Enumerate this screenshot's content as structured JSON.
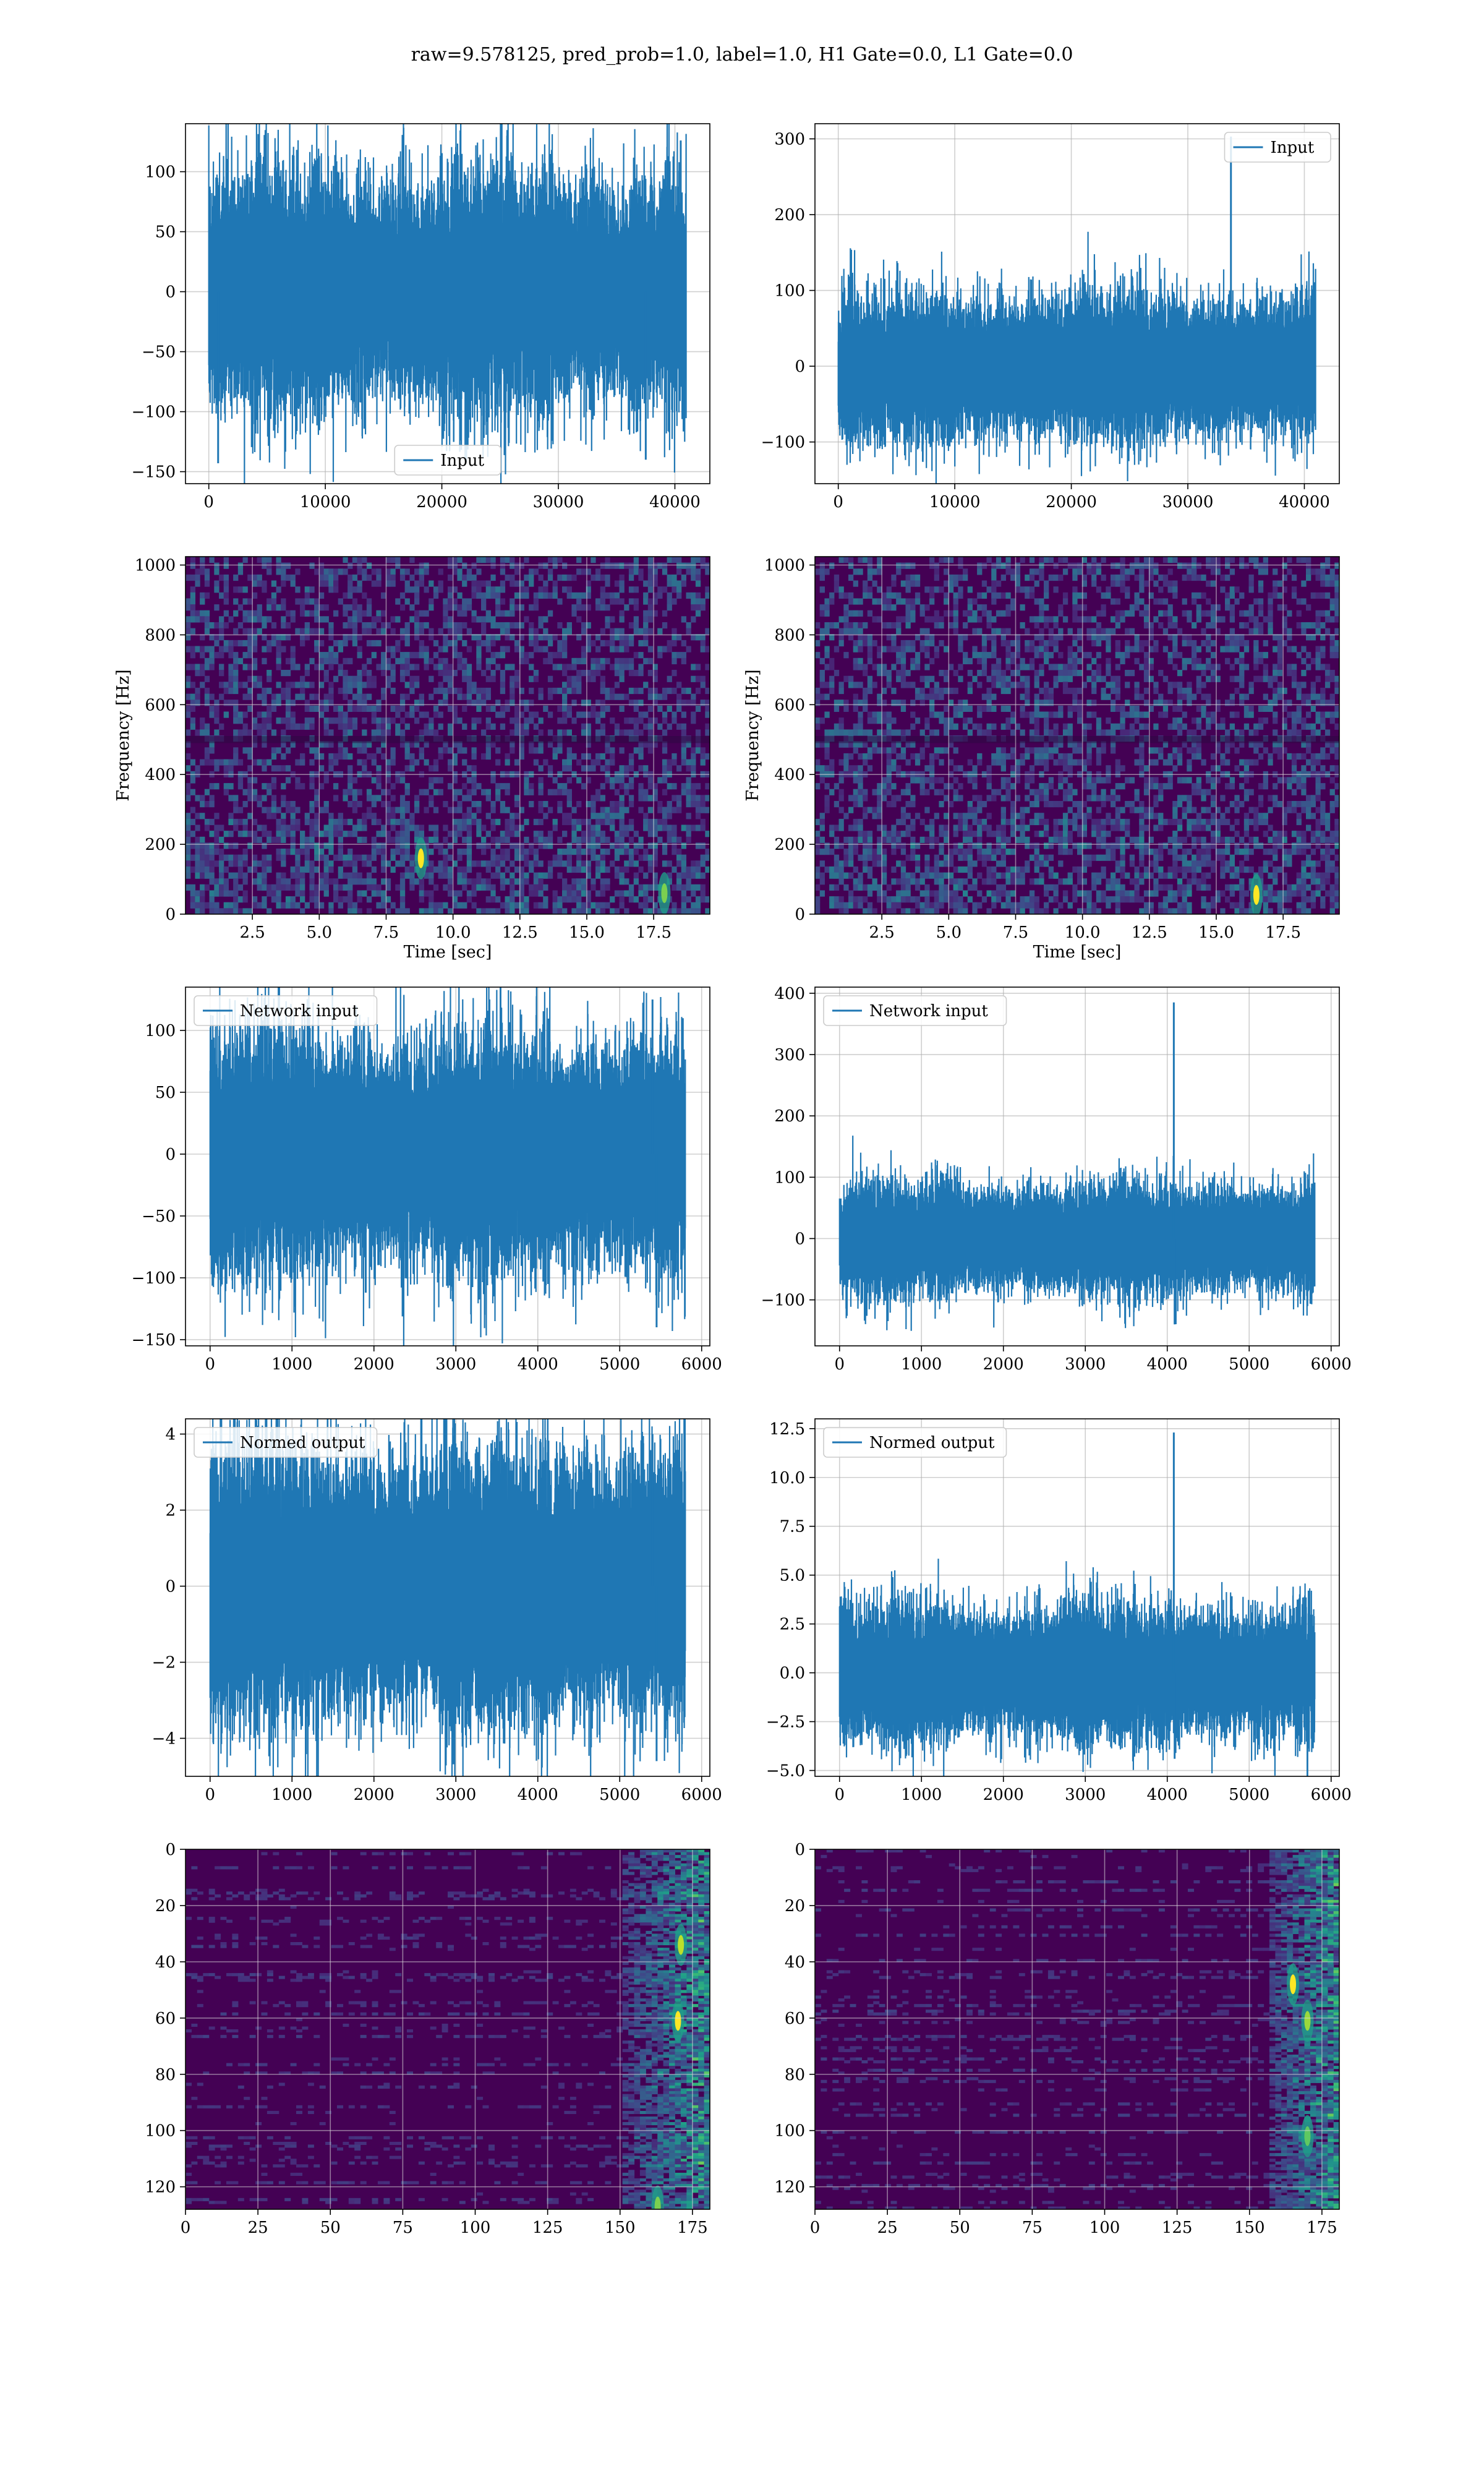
{
  "figure": {
    "title": "raw=9.578125, pred_prob=1.0, label=1.0, H1 Gate=0.0, L1 Gate=0.0"
  },
  "colors": {
    "line": "#1f77b4",
    "grid": "#b0b0b0",
    "spec_bg": "#440154",
    "spec_mid": "#3b528b",
    "spec_teal": "#21918c",
    "spec_green": "#5ec962",
    "spec_yellow": "#fde725"
  },
  "chart_data": [
    {
      "id": "h1-input",
      "type": "line",
      "column": 0,
      "row": 0,
      "series": [
        {
          "name": "Input",
          "n": 40960,
          "x_range": [
            0,
            40960
          ],
          "amplitude_std": 28,
          "spikes": [
            {
              "x": 800,
              "y": -143
            },
            {
              "x": 37500,
              "y": -140
            },
            {
              "x": 40500,
              "y": 126
            }
          ]
        }
      ],
      "legend": "lower center",
      "xlim": [
        -2000,
        43000
      ],
      "ylim": [
        -160,
        140
      ],
      "xticks": [
        0,
        10000,
        20000,
        30000,
        40000
      ],
      "yticks": [
        -150,
        -100,
        -50,
        0,
        50,
        100
      ],
      "xticklabels": [
        "0",
        "10000",
        "20000",
        "30000",
        "40000"
      ],
      "yticklabels": [
        "−150",
        "−100",
        "−50",
        "0",
        "50",
        "100"
      ],
      "grid": true
    },
    {
      "id": "l1-input",
      "type": "line",
      "column": 1,
      "row": 0,
      "series": [
        {
          "name": "Input",
          "n": 40960,
          "x_range": [
            0,
            40960
          ],
          "amplitude_std": 26,
          "spikes": [
            {
              "x": 33700,
              "y": 303
            }
          ]
        }
      ],
      "legend": "upper right",
      "xlim": [
        -2000,
        43000
      ],
      "ylim": [
        -155,
        320
      ],
      "xticks": [
        0,
        10000,
        20000,
        30000,
        40000
      ],
      "yticks": [
        -100,
        0,
        100,
        200,
        300
      ],
      "xticklabels": [
        "0",
        "10000",
        "20000",
        "30000",
        "40000"
      ],
      "yticklabels": [
        "−100",
        "0",
        "100",
        "200",
        "300"
      ],
      "grid": true
    },
    {
      "id": "h1-spectrogram",
      "type": "heatmap",
      "column": 0,
      "row": 1,
      "xlim": [
        0,
        19.6
      ],
      "ylim": [
        0,
        1024
      ],
      "xticks": [
        2.5,
        5.0,
        7.5,
        10.0,
        12.5,
        15.0,
        17.5
      ],
      "yticks": [
        0,
        200,
        400,
        600,
        800,
        1000
      ],
      "xticklabels": [
        "2.5",
        "5.0",
        "7.5",
        "10.0",
        "12.5",
        "15.0",
        "17.5"
      ],
      "yticklabels": [
        "0",
        "200",
        "400",
        "600",
        "800",
        "1000"
      ],
      "xlabel": "Time [sec]",
      "ylabel": "Frequency [Hz]",
      "hotspots": [
        {
          "x": 8.8,
          "y": 160,
          "level": 1.0
        },
        {
          "x": 17.9,
          "y": 60,
          "level": 0.8
        }
      ],
      "grid": true
    },
    {
      "id": "l1-spectrogram",
      "type": "heatmap",
      "column": 1,
      "row": 1,
      "xlim": [
        0,
        19.6
      ],
      "ylim": [
        0,
        1024
      ],
      "xticks": [
        2.5,
        5.0,
        7.5,
        10.0,
        12.5,
        15.0,
        17.5
      ],
      "yticks": [
        0,
        200,
        400,
        600,
        800,
        1000
      ],
      "xticklabels": [
        "2.5",
        "5.0",
        "7.5",
        "10.0",
        "12.5",
        "15.0",
        "17.5"
      ],
      "yticklabels": [
        "0",
        "200",
        "400",
        "600",
        "800",
        "1000"
      ],
      "xlabel": "Time [sec]",
      "ylabel": "Frequency [Hz]",
      "hotspots": [
        {
          "x": 16.5,
          "y": 55,
          "level": 1.0
        }
      ],
      "grid": true
    },
    {
      "id": "h1-network-input",
      "type": "line",
      "column": 0,
      "row": 2,
      "series": [
        {
          "name": "Network input",
          "n": 5800,
          "x_range": [
            0,
            5800
          ],
          "amplitude_std": 27,
          "spikes": [
            {
              "x": 5400,
              "y": 125
            },
            {
              "x": 5450,
              "y": -140
            },
            {
              "x": 1900,
              "y": -112
            }
          ]
        }
      ],
      "legend": "upper left",
      "xlim": [
        -300,
        6100
      ],
      "ylim": [
        -155,
        135
      ],
      "xticks": [
        0,
        1000,
        2000,
        3000,
        4000,
        5000,
        6000
      ],
      "yticks": [
        -150,
        -100,
        -50,
        0,
        50,
        100
      ],
      "xticklabels": [
        "0",
        "1000",
        "2000",
        "3000",
        "4000",
        "5000",
        "6000"
      ],
      "yticklabels": [
        "−150",
        "−100",
        "−50",
        "0",
        "50",
        "100"
      ],
      "grid": true
    },
    {
      "id": "l1-network-input",
      "type": "line",
      "column": 1,
      "row": 2,
      "series": [
        {
          "name": "Network input",
          "n": 5800,
          "x_range": [
            0,
            5800
          ],
          "amplitude_std": 25,
          "spikes": [
            {
              "x": 4080,
              "y": 385
            },
            {
              "x": 4090,
              "y": -140
            }
          ]
        }
      ],
      "legend": "upper left",
      "xlim": [
        -300,
        6100
      ],
      "ylim": [
        -175,
        410
      ],
      "xticks": [
        0,
        1000,
        2000,
        3000,
        4000,
        5000,
        6000
      ],
      "yticks": [
        -100,
        0,
        100,
        200,
        300,
        400
      ],
      "xticklabels": [
        "0",
        "1000",
        "2000",
        "3000",
        "4000",
        "5000",
        "6000"
      ],
      "yticklabels": [
        "−100",
        "0",
        "100",
        "200",
        "300",
        "400"
      ],
      "grid": true
    },
    {
      "id": "h1-normed-output",
      "type": "line",
      "column": 0,
      "row": 3,
      "series": [
        {
          "name": "Normed output",
          "n": 5800,
          "x_range": [
            0,
            5800
          ],
          "amplitude_std": 1.0,
          "spikes": [
            {
              "x": 5400,
              "y": 4.0
            },
            {
              "x": 5450,
              "y": -4.6
            },
            {
              "x": 1900,
              "y": -3.5
            }
          ]
        }
      ],
      "legend": "upper left",
      "xlim": [
        -300,
        6100
      ],
      "ylim": [
        -5.0,
        4.4
      ],
      "xticks": [
        0,
        1000,
        2000,
        3000,
        4000,
        5000,
        6000
      ],
      "yticks": [
        -4,
        -2,
        0,
        2,
        4
      ],
      "xticklabels": [
        "0",
        "1000",
        "2000",
        "3000",
        "4000",
        "5000",
        "6000"
      ],
      "yticklabels": [
        "−4",
        "−2",
        "0",
        "2",
        "4"
      ],
      "grid": true
    },
    {
      "id": "l1-normed-output",
      "type": "line",
      "column": 1,
      "row": 3,
      "series": [
        {
          "name": "Normed output",
          "n": 5800,
          "x_range": [
            0,
            5800
          ],
          "amplitude_std": 0.95,
          "spikes": [
            {
              "x": 4080,
              "y": 12.3
            },
            {
              "x": 4090,
              "y": -4.4
            }
          ]
        }
      ],
      "legend": "upper left",
      "xlim": [
        -300,
        6100
      ],
      "ylim": [
        -5.3,
        13.0
      ],
      "xticks": [
        0,
        1000,
        2000,
        3000,
        4000,
        5000,
        6000
      ],
      "yticks": [
        -5.0,
        -2.5,
        0.0,
        2.5,
        5.0,
        7.5,
        10.0,
        12.5
      ],
      "xticklabels": [
        "0",
        "1000",
        "2000",
        "3000",
        "4000",
        "5000",
        "6000"
      ],
      "yticklabels": [
        "−5.0",
        "−2.5",
        "0.0",
        "2.5",
        "5.0",
        "7.5",
        "10.0",
        "12.5"
      ],
      "grid": true
    },
    {
      "id": "h1-feature-map",
      "type": "heatmap",
      "column": 0,
      "row": 4,
      "xlim": [
        0,
        181
      ],
      "ylim": [
        128,
        0
      ],
      "xticks": [
        0,
        25,
        50,
        75,
        100,
        125,
        150,
        175
      ],
      "yticks": [
        0,
        20,
        40,
        60,
        80,
        100,
        120
      ],
      "xticklabels": [
        "0",
        "25",
        "50",
        "75",
        "100",
        "125",
        "150",
        "175"
      ],
      "yticklabels": [
        "0",
        "20",
        "40",
        "60",
        "80",
        "100",
        "120"
      ],
      "active_band": [
        150,
        181
      ],
      "hotspots": [
        {
          "x": 171,
          "y": 34,
          "level": 0.9
        },
        {
          "x": 170,
          "y": 61,
          "level": 1.0
        },
        {
          "x": 163,
          "y": 127,
          "level": 0.8
        }
      ],
      "grid": true
    },
    {
      "id": "l1-feature-map",
      "type": "heatmap",
      "column": 1,
      "row": 4,
      "xlim": [
        0,
        181
      ],
      "ylim": [
        128,
        0
      ],
      "xticks": [
        0,
        25,
        50,
        75,
        100,
        125,
        150,
        175
      ],
      "yticks": [
        0,
        20,
        40,
        60,
        80,
        100,
        120
      ],
      "xticklabels": [
        "0",
        "25",
        "50",
        "75",
        "100",
        "125",
        "150",
        "175"
      ],
      "yticklabels": [
        "0",
        "20",
        "40",
        "60",
        "80",
        "100",
        "120"
      ],
      "active_band": [
        155,
        181
      ],
      "hotspots": [
        {
          "x": 165,
          "y": 48,
          "level": 1.0
        },
        {
          "x": 170,
          "y": 61,
          "level": 0.85
        },
        {
          "x": 170,
          "y": 102,
          "level": 0.75
        }
      ],
      "grid": true
    }
  ]
}
